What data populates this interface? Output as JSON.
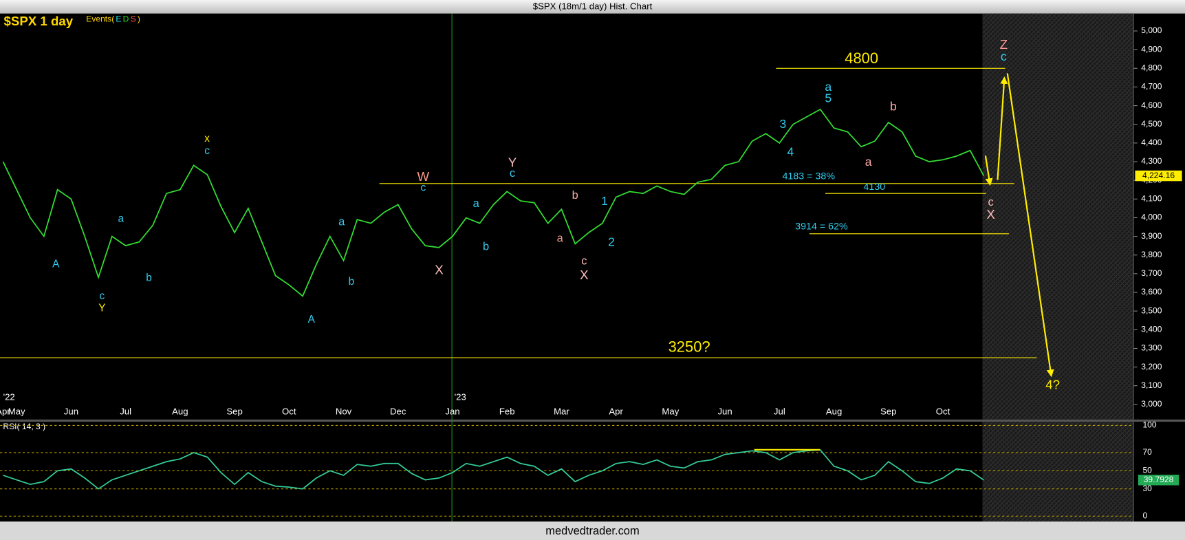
{
  "window_title": "$SPX (18m/1 day) Hist. Chart",
  "footer": "medvedtrader.com",
  "chart_data": [
    {
      "type": "line",
      "title": "$SPX 1 day",
      "events": [
        {
          "text": "Events(",
          "color": "#ffd700"
        },
        {
          "text": "E",
          "color": "#22dddd"
        },
        {
          "text": "D",
          "color": "#22dd22"
        },
        {
          "text": "S",
          "color": "#ff5555"
        },
        {
          "text": ")",
          "color": "#ffd700"
        }
      ],
      "categories": [
        "Apr",
        "May",
        null,
        null,
        null,
        "Jun",
        null,
        null,
        null,
        "Jul",
        null,
        null,
        null,
        "Aug",
        null,
        null,
        null,
        "Sep",
        null,
        null,
        null,
        "Oct",
        null,
        null,
        null,
        "Nov",
        null,
        null,
        null,
        "Dec",
        null,
        null,
        null,
        "Jan",
        null,
        null,
        null,
        "Feb",
        null,
        null,
        null,
        "Mar",
        null,
        null,
        null,
        "Apr",
        null,
        null,
        null,
        "May",
        null,
        null,
        null,
        "Jun",
        null,
        null,
        null,
        "Jul",
        null,
        null,
        null,
        "Aug",
        null,
        null,
        null,
        "Sep",
        null,
        null,
        null,
        "Oct",
        null,
        null,
        null,
        null,
        null,
        null,
        null,
        null,
        null,
        null,
        null,
        null,
        null
      ],
      "year_labels": [
        "'22",
        "'23"
      ],
      "series": [
        {
          "name": "$SPX",
          "color": "#33dd33",
          "values": [
            4300,
            4150,
            4000,
            3900,
            4150,
            4100,
            3900,
            3680,
            3900,
            3850,
            3870,
            3960,
            4130,
            4150,
            4280,
            4230,
            4060,
            3920,
            4050,
            3870,
            3690,
            3640,
            3580,
            3750,
            3900,
            3770,
            3990,
            3970,
            4030,
            4070,
            3940,
            3850,
            3840,
            3900,
            3999,
            3970,
            4070,
            4140,
            4090,
            4080,
            3970,
            4045,
            3860,
            3920,
            3970,
            4110,
            4140,
            4130,
            4170,
            4140,
            4125,
            4190,
            4205,
            4280,
            4300,
            4410,
            4450,
            4400,
            4500,
            4540,
            4580,
            4480,
            4460,
            4380,
            4410,
            4510,
            4460,
            4330,
            4300,
            4310,
            4330,
            4360,
            4224.16,
            null,
            null,
            null,
            null,
            null,
            null,
            null,
            null,
            null,
            null
          ]
        }
      ],
      "last_value": {
        "value": 4224.16,
        "label": "4,224.16"
      },
      "ylim": [
        2919,
        5093
      ],
      "yticks": [
        {
          "value": 3000,
          "label": "3,000"
        },
        {
          "value": 3100,
          "label": "3,100"
        },
        {
          "value": 3200,
          "label": "3,200"
        },
        {
          "value": 3300,
          "label": "3,300"
        },
        {
          "value": 3400,
          "label": "3,400"
        },
        {
          "value": 3500,
          "label": "3,500"
        },
        {
          "value": 3600,
          "label": "3,600"
        },
        {
          "value": 3700,
          "label": "3,700"
        },
        {
          "value": 3800,
          "label": "3,800"
        },
        {
          "value": 3900,
          "label": "3,900"
        },
        {
          "value": 4000,
          "label": "4,000"
        },
        {
          "value": 4100,
          "label": "4,100"
        },
        {
          "value": 4200,
          "label": "4,200"
        },
        {
          "value": 4300,
          "label": "4,300"
        },
        {
          "value": 4400,
          "label": "4,400"
        },
        {
          "value": 4500,
          "label": "4,500"
        },
        {
          "value": 4600,
          "label": "4,600"
        },
        {
          "value": 4700,
          "label": "4,700"
        },
        {
          "value": 4800,
          "label": "4,800"
        },
        {
          "value": 4900,
          "label": "4,900"
        },
        {
          "value": 5000,
          "label": "5,000"
        }
      ],
      "levels": [
        {
          "value": 4800,
          "label": "4800",
          "color": "#ffee00"
        },
        {
          "value": 4183,
          "label": "4183 = 38%",
          "color": "#33ccee"
        },
        {
          "value": 4130,
          "label": "4130",
          "color": "#33ccee"
        },
        {
          "value": 3914,
          "label": "3914 = 62%",
          "color": "#33ccee"
        },
        {
          "value": 3250,
          "label": "3250?",
          "color": "#ffee00"
        }
      ],
      "annotations": [
        {
          "text": "A",
          "color": "#33ccee"
        },
        {
          "text": "c",
          "color": "#33ccee"
        },
        {
          "text": "Y",
          "color": "#ffee00"
        },
        {
          "text": "a",
          "color": "#33ccee"
        },
        {
          "text": "b",
          "color": "#33ccee"
        },
        {
          "text": "x",
          "color": "#ffee00"
        },
        {
          "text": "c",
          "color": "#33ccee"
        },
        {
          "text": "A",
          "color": "#33ccee"
        },
        {
          "text": "a",
          "color": "#33ccee"
        },
        {
          "text": "b",
          "color": "#33ccee"
        },
        {
          "text": "W",
          "color": "#ff9988"
        },
        {
          "text": "c",
          "color": "#33ccee"
        },
        {
          "text": "X",
          "color": "#ffbbbb"
        },
        {
          "text": "a",
          "color": "#33ccee"
        },
        {
          "text": "b",
          "color": "#33ccee"
        },
        {
          "text": "Y",
          "color": "#ffbbbb"
        },
        {
          "text": "c",
          "color": "#33ccee"
        },
        {
          "text": "b",
          "color": "#ffaaaa"
        },
        {
          "text": "a",
          "color": "#ee9988"
        },
        {
          "text": "c",
          "color": "#ffbbbb"
        },
        {
          "text": "X",
          "color": "#ffbbbb"
        },
        {
          "text": "1",
          "color": "#33ccee"
        },
        {
          "text": "2",
          "color": "#33ccee"
        },
        {
          "text": "3",
          "color": "#33ccee"
        },
        {
          "text": "4",
          "color": "#33ccee"
        },
        {
          "text": "a",
          "color": "#33ccee"
        },
        {
          "text": "5",
          "color": "#33ccee"
        },
        {
          "text": "b",
          "color": "#ffaaaa"
        },
        {
          "text": "a",
          "color": "#ffaaaa"
        },
        {
          "text": "c",
          "color": "#ffbbbb"
        },
        {
          "text": "X",
          "color": "#ffbbbb"
        },
        {
          "text": "Z",
          "color": "#ff9999"
        },
        {
          "text": "c",
          "color": "#33ccee"
        },
        {
          "text": "4?",
          "color": "#ffee00"
        }
      ]
    },
    {
      "type": "line",
      "title": "RSI( 14, 3 )",
      "series": [
        {
          "name": "RSI",
          "color": "#33cc99",
          "values": [
            45,
            40,
            35,
            38,
            50,
            52,
            42,
            30,
            40,
            45,
            50,
            55,
            60,
            63,
            70,
            65,
            48,
            35,
            48,
            38,
            33,
            32,
            30,
            42,
            50,
            45,
            57,
            55,
            58,
            58,
            47,
            40,
            42,
            48,
            58,
            55,
            60,
            65,
            58,
            55,
            45,
            52,
            38,
            45,
            50,
            58,
            60,
            57,
            62,
            55,
            53,
            60,
            62,
            68,
            70,
            72,
            70,
            62,
            70,
            72,
            73,
            55,
            50,
            40,
            45,
            60,
            50,
            38,
            36,
            42,
            52,
            50,
            39.7928,
            null,
            null,
            null,
            null,
            null,
            null,
            null,
            null,
            null,
            null
          ]
        }
      ],
      "ylim": [
        -6,
        104
      ],
      "yticks": [
        0,
        30,
        50,
        70,
        100
      ]
    }
  ]
}
